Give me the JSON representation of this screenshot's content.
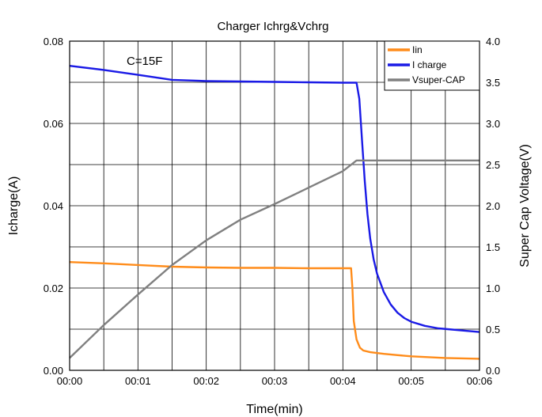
{
  "chart_data": {
    "type": "line",
    "title": "Charger Ichrg&Vchrg",
    "xlabel": "Time(min)",
    "ylabel": "Icharge(A)",
    "y2label": "Super Cap Voltage(V)",
    "annotation": "C=15F",
    "x_ticks": [
      "00:00",
      "00:01",
      "00:02",
      "00:03",
      "00:04",
      "00:05",
      "00:06"
    ],
    "y_ticks": [
      "0.00",
      "0.02",
      "0.04",
      "0.06",
      "0.08"
    ],
    "y2_ticks": [
      "0.0",
      "0.5",
      "1.0",
      "1.5",
      "2.0",
      "2.5",
      "3.0",
      "3.5",
      "4.0"
    ],
    "xlim": [
      0,
      6
    ],
    "ylim": [
      0,
      0.08
    ],
    "y2lim": [
      0,
      4
    ],
    "x_minor_divisions": 2,
    "grid": true,
    "legend": "top-right",
    "series": [
      {
        "name": "Iin",
        "axis": "left",
        "color": "#ff8c1a",
        "x": [
          0,
          0.5,
          1.0,
          1.5,
          2.0,
          2.5,
          3.0,
          3.5,
          4.0,
          4.12,
          4.14,
          4.16,
          4.2,
          4.25,
          4.3,
          4.4,
          4.6,
          4.8,
          5.0,
          5.5,
          6.0
        ],
        "y": [
          0.0263,
          0.026,
          0.0256,
          0.0252,
          0.025,
          0.0249,
          0.0249,
          0.0248,
          0.0248,
          0.0248,
          0.02,
          0.012,
          0.0075,
          0.0055,
          0.0048,
          0.0044,
          0.004,
          0.0037,
          0.0034,
          0.003,
          0.0028
        ]
      },
      {
        "name": "I charge",
        "axis": "left",
        "color": "#1a1ae6",
        "x": [
          0,
          0.5,
          1.0,
          1.5,
          2.0,
          2.5,
          3.0,
          3.5,
          4.0,
          4.2,
          4.24,
          4.28,
          4.32,
          4.36,
          4.4,
          4.45,
          4.5,
          4.6,
          4.7,
          4.8,
          4.9,
          5.0,
          5.2,
          5.4,
          5.6,
          5.8,
          6.0
        ],
        "y": [
          0.074,
          0.073,
          0.0718,
          0.0706,
          0.0703,
          0.0702,
          0.0701,
          0.07,
          0.0699,
          0.0699,
          0.066,
          0.056,
          0.046,
          0.038,
          0.032,
          0.027,
          0.0235,
          0.019,
          0.016,
          0.014,
          0.0127,
          0.0118,
          0.0108,
          0.0102,
          0.0099,
          0.0096,
          0.0093
        ]
      },
      {
        "name": "Vsuper-CAP",
        "axis": "right",
        "color": "#808080",
        "x": [
          0,
          0.5,
          1.0,
          1.5,
          2.0,
          2.5,
          3.0,
          3.5,
          4.0,
          4.2,
          4.5,
          5.0,
          5.5,
          6.0
        ],
        "y": [
          0.15,
          0.55,
          0.92,
          1.28,
          1.58,
          1.83,
          2.02,
          2.22,
          2.42,
          2.55,
          2.55,
          2.55,
          2.55,
          2.55
        ]
      }
    ]
  }
}
